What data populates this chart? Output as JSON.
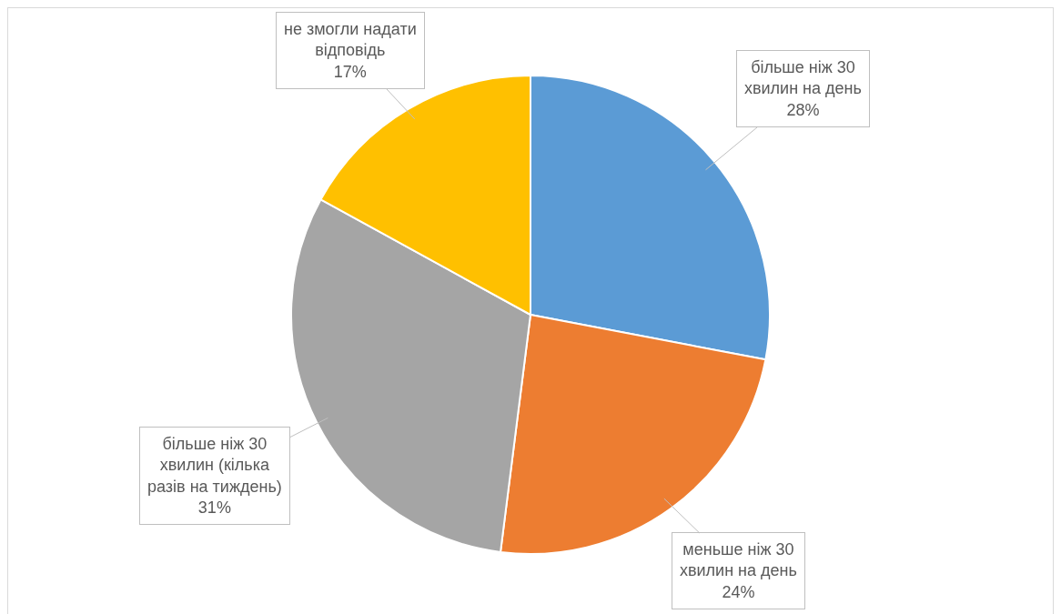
{
  "chart_data": {
    "type": "pie",
    "categories": [
      "більше ніж 30 хвилин на день",
      "меньше ніж 30 хвилин на день",
      "більше ніж 30 хвилин (кілька разів на тиждень)",
      "не змогли надати відповідь"
    ],
    "values": [
      28,
      24,
      31,
      17
    ],
    "value_labels": [
      "28%",
      "24%",
      "31%",
      "17%"
    ],
    "colors": [
      "#5b9bd5",
      "#ed7d31",
      "#a5a5a5",
      "#ffc000"
    ]
  }
}
